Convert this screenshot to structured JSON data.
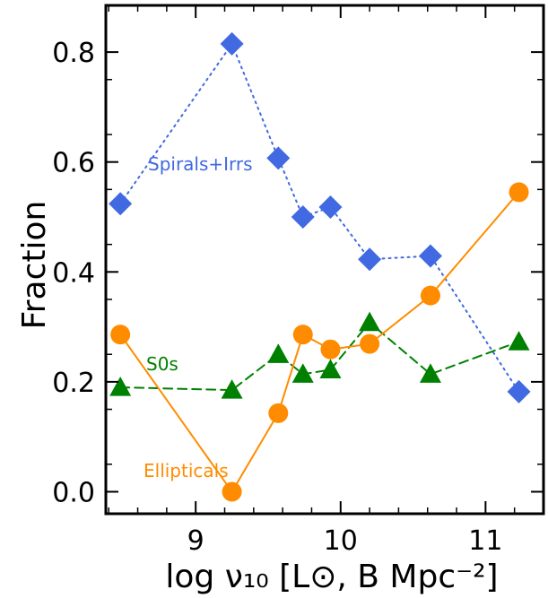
{
  "chart_data": {
    "type": "line",
    "xlabel": "log ν₁₀ [L⊙, B Mpc⁻²]",
    "ylabel": "Fraction",
    "xlim": [
      8.38,
      11.4
    ],
    "ylim": [
      -0.04,
      0.885
    ],
    "xticks": [
      9,
      10,
      11
    ],
    "xtick_labels": [
      "9",
      "10",
      "11"
    ],
    "yticks": [
      0.0,
      0.2,
      0.4,
      0.6,
      0.8
    ],
    "ytick_labels": [
      "0.0",
      "0.2",
      "0.4",
      "0.6",
      "0.8"
    ],
    "grid": false,
    "series": [
      {
        "name": "Spirals+Irrs",
        "color": "#4169e1",
        "linestyle": "dotted",
        "marker": "diamond",
        "x": [
          8.48,
          9.25,
          9.57,
          9.74,
          9.93,
          10.2,
          10.62,
          11.23
        ],
        "y": [
          0.524,
          0.815,
          0.607,
          0.5,
          0.518,
          0.423,
          0.429,
          0.182
        ]
      },
      {
        "name": "S0s",
        "color": "#008000",
        "linestyle": "dashed",
        "marker": "triangle",
        "x": [
          8.48,
          9.25,
          9.57,
          9.74,
          9.93,
          10.2,
          10.62,
          11.23
        ],
        "y": [
          0.19,
          0.185,
          0.25,
          0.214,
          0.222,
          0.308,
          0.214,
          0.273
        ]
      },
      {
        "name": "Ellipticals",
        "color": "#ff8c00",
        "linestyle": "solid",
        "marker": "circle",
        "x": [
          8.48,
          9.25,
          9.57,
          9.74,
          9.93,
          10.2,
          10.62,
          11.23
        ],
        "y": [
          0.286,
          0.0,
          0.143,
          0.286,
          0.259,
          0.269,
          0.357,
          0.545
        ]
      }
    ]
  }
}
